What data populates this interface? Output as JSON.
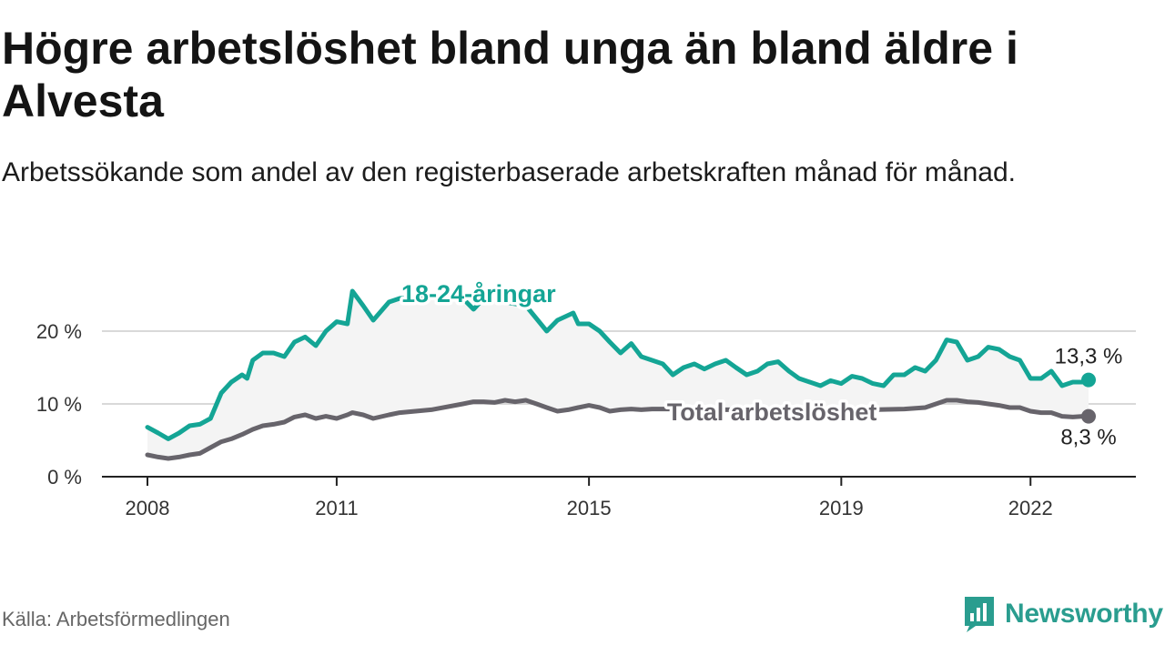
{
  "title": "Högre arbetslöshet bland unga än bland äldre i Alvesta",
  "subtitle": "Arbetssökande som andel av den registerbaserade arbetskraften månad för månad.",
  "source": "Källa: Arbetsförmedlingen",
  "brand": {
    "name": "Newsworthy",
    "icon": "newsworthy-logo-icon"
  },
  "colors": {
    "young": "#14a595",
    "total": "#67646b",
    "band": "#f4f4f4",
    "grid": "#d9d9d9",
    "axis": "#222222"
  },
  "chart_data": {
    "type": "line",
    "title": "Högre arbetslöshet bland unga än bland äldre i Alvesta",
    "xlabel": "",
    "ylabel": "",
    "xlim": [
      2008,
      2023
    ],
    "ylim": [
      0,
      25
    ],
    "x_ticks": [
      {
        "value": 2008,
        "label": "2008"
      },
      {
        "value": 2011,
        "label": "2011"
      },
      {
        "value": 2015,
        "label": "2015"
      },
      {
        "value": 2019,
        "label": "2019"
      },
      {
        "value": 2022,
        "label": "2022"
      }
    ],
    "y_ticks": [
      {
        "value": 0,
        "label": "0 %"
      },
      {
        "value": 10,
        "label": "10 %"
      },
      {
        "value": 20,
        "label": "20 %"
      }
    ],
    "grid": true,
    "series": [
      {
        "name": "18-24-åringar",
        "end_label": "13,3 %",
        "points": [
          [
            2008.0,
            6.8
          ],
          [
            2008.17,
            6.0
          ],
          [
            2008.33,
            5.2
          ],
          [
            2008.5,
            6.0
          ],
          [
            2008.67,
            7.0
          ],
          [
            2008.83,
            7.2
          ],
          [
            2009.0,
            8.0
          ],
          [
            2009.17,
            11.5
          ],
          [
            2009.33,
            13.0
          ],
          [
            2009.5,
            14.0
          ],
          [
            2009.58,
            13.5
          ],
          [
            2009.67,
            16.0
          ],
          [
            2009.83,
            17.0
          ],
          [
            2010.0,
            17.0
          ],
          [
            2010.17,
            16.5
          ],
          [
            2010.33,
            18.5
          ],
          [
            2010.5,
            19.2
          ],
          [
            2010.67,
            18.0
          ],
          [
            2010.83,
            20.0
          ],
          [
            2011.0,
            21.3
          ],
          [
            2011.17,
            21.0
          ],
          [
            2011.25,
            25.5
          ],
          [
            2011.42,
            23.5
          ],
          [
            2011.58,
            21.5
          ],
          [
            2011.83,
            24.0
          ],
          [
            2012.0,
            24.5
          ],
          [
            2012.5,
            24.8
          ],
          [
            2013.0,
            24.5
          ],
          [
            2013.17,
            23.0
          ],
          [
            2013.33,
            24.5
          ],
          [
            2013.67,
            24.0
          ],
          [
            2014.0,
            23.5
          ],
          [
            2014.33,
            20.0
          ],
          [
            2014.5,
            21.5
          ],
          [
            2014.75,
            22.5
          ],
          [
            2014.83,
            21.0
          ],
          [
            2015.0,
            21.0
          ],
          [
            2015.17,
            20.0
          ],
          [
            2015.33,
            18.5
          ],
          [
            2015.5,
            17.0
          ],
          [
            2015.67,
            18.3
          ],
          [
            2015.83,
            16.5
          ],
          [
            2016.0,
            16.0
          ],
          [
            2016.17,
            15.5
          ],
          [
            2016.33,
            14.0
          ],
          [
            2016.5,
            15.0
          ],
          [
            2016.67,
            15.5
          ],
          [
            2016.83,
            14.8
          ],
          [
            2017.0,
            15.5
          ],
          [
            2017.17,
            16.0
          ],
          [
            2017.33,
            15.0
          ],
          [
            2017.5,
            14.0
          ],
          [
            2017.67,
            14.5
          ],
          [
            2017.83,
            15.5
          ],
          [
            2018.0,
            15.8
          ],
          [
            2018.17,
            14.5
          ],
          [
            2018.33,
            13.5
          ],
          [
            2018.5,
            13.0
          ],
          [
            2018.67,
            12.5
          ],
          [
            2018.83,
            13.2
          ],
          [
            2019.0,
            12.8
          ],
          [
            2019.17,
            13.8
          ],
          [
            2019.33,
            13.5
          ],
          [
            2019.5,
            12.8
          ],
          [
            2019.67,
            12.5
          ],
          [
            2019.83,
            14.0
          ],
          [
            2020.0,
            14.0
          ],
          [
            2020.17,
            15.0
          ],
          [
            2020.33,
            14.5
          ],
          [
            2020.5,
            16.0
          ],
          [
            2020.67,
            18.8
          ],
          [
            2020.83,
            18.5
          ],
          [
            2021.0,
            16.0
          ],
          [
            2021.17,
            16.5
          ],
          [
            2021.33,
            17.8
          ],
          [
            2021.5,
            17.5
          ],
          [
            2021.67,
            16.5
          ],
          [
            2021.83,
            16.0
          ],
          [
            2022.0,
            13.5
          ],
          [
            2022.17,
            13.5
          ],
          [
            2022.33,
            14.5
          ],
          [
            2022.5,
            12.5
          ],
          [
            2022.67,
            13.0
          ],
          [
            2022.83,
            13.0
          ],
          [
            2022.92,
            13.3
          ]
        ]
      },
      {
        "name": "Total arbetslöshet",
        "end_label": "8,3 %",
        "points": [
          [
            2008.0,
            3.0
          ],
          [
            2008.17,
            2.7
          ],
          [
            2008.33,
            2.5
          ],
          [
            2008.5,
            2.7
          ],
          [
            2008.67,
            3.0
          ],
          [
            2008.83,
            3.2
          ],
          [
            2009.0,
            4.0
          ],
          [
            2009.17,
            4.8
          ],
          [
            2009.33,
            5.2
          ],
          [
            2009.5,
            5.8
          ],
          [
            2009.67,
            6.5
          ],
          [
            2009.83,
            7.0
          ],
          [
            2010.0,
            7.2
          ],
          [
            2010.17,
            7.5
          ],
          [
            2010.33,
            8.2
          ],
          [
            2010.5,
            8.5
          ],
          [
            2010.67,
            8.0
          ],
          [
            2010.83,
            8.3
          ],
          [
            2011.0,
            8.0
          ],
          [
            2011.17,
            8.5
          ],
          [
            2011.25,
            8.8
          ],
          [
            2011.42,
            8.5
          ],
          [
            2011.58,
            8.0
          ],
          [
            2011.83,
            8.5
          ],
          [
            2012.0,
            8.8
          ],
          [
            2012.5,
            9.2
          ],
          [
            2013.0,
            10.0
          ],
          [
            2013.17,
            10.3
          ],
          [
            2013.33,
            10.3
          ],
          [
            2013.5,
            10.2
          ],
          [
            2013.67,
            10.5
          ],
          [
            2013.83,
            10.3
          ],
          [
            2014.0,
            10.5
          ],
          [
            2014.17,
            10.0
          ],
          [
            2014.33,
            9.5
          ],
          [
            2014.5,
            9.0
          ],
          [
            2014.67,
            9.2
          ],
          [
            2014.83,
            9.5
          ],
          [
            2015.0,
            9.8
          ],
          [
            2015.17,
            9.5
          ],
          [
            2015.33,
            9.0
          ],
          [
            2015.5,
            9.2
          ],
          [
            2015.67,
            9.3
          ],
          [
            2015.83,
            9.2
          ],
          [
            2016.0,
            9.3
          ],
          [
            2016.5,
            9.3
          ],
          [
            2017.0,
            9.2
          ],
          [
            2017.5,
            9.2
          ],
          [
            2018.0,
            9.2
          ],
          [
            2018.5,
            9.0
          ],
          [
            2019.0,
            9.0
          ],
          [
            2019.5,
            9.2
          ],
          [
            2020.0,
            9.3
          ],
          [
            2020.33,
            9.5
          ],
          [
            2020.5,
            10.0
          ],
          [
            2020.67,
            10.5
          ],
          [
            2020.83,
            10.5
          ],
          [
            2021.0,
            10.3
          ],
          [
            2021.17,
            10.2
          ],
          [
            2021.33,
            10.0
          ],
          [
            2021.5,
            9.8
          ],
          [
            2021.67,
            9.5
          ],
          [
            2021.83,
            9.5
          ],
          [
            2022.0,
            9.0
          ],
          [
            2022.17,
            8.8
          ],
          [
            2022.33,
            8.8
          ],
          [
            2022.5,
            8.3
          ],
          [
            2022.67,
            8.2
          ],
          [
            2022.83,
            8.3
          ],
          [
            2022.92,
            8.3
          ]
        ]
      }
    ]
  }
}
